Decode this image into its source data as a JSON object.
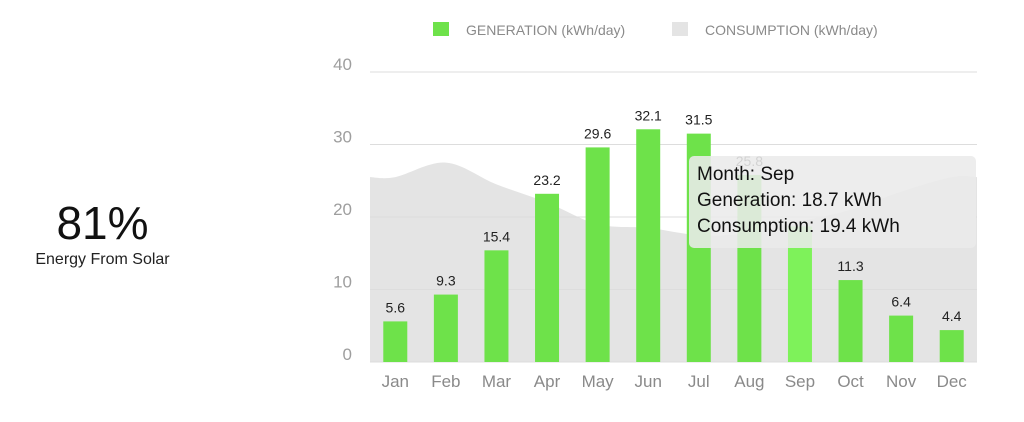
{
  "kpi": {
    "value": "81%",
    "label": "Energy From Solar"
  },
  "colors": {
    "generation": "#6ee24a",
    "generation_highlight": "#7ef25a",
    "consumption": "#e4e4e4",
    "grid": "#dddddd"
  },
  "chart_data": {
    "type": "bar",
    "categories": [
      "Jan",
      "Feb",
      "Mar",
      "Apr",
      "May",
      "Jun",
      "Jul",
      "Aug",
      "Sep",
      "Oct",
      "Nov",
      "Dec"
    ],
    "series": [
      {
        "name": "GENERATION (kWh/day)",
        "type": "bar",
        "values": [
          5.6,
          9.3,
          15.4,
          23.2,
          29.6,
          32.1,
          31.5,
          25.8,
          18.7,
          11.3,
          6.4,
          4.4
        ]
      },
      {
        "name": "CONSUMPTION (kWh/day)",
        "type": "area",
        "values": [
          25.5,
          27.5,
          24.5,
          22.0,
          19.0,
          18.5,
          17.5,
          17.8,
          19.4,
          21.0,
          23.5,
          25.5
        ]
      }
    ],
    "data_labels": [
      "5.6",
      "9.3",
      "15.4",
      "23.2",
      "29.6",
      "32.1",
      "31.5",
      "25.8",
      "",
      "11.3",
      "6.4",
      "4.4"
    ],
    "yticks": [
      "0",
      "10",
      "20",
      "30",
      "40"
    ],
    "ylim": [
      0,
      40
    ],
    "grid": true,
    "legend_position": "top-center",
    "highlighted_category": "Sep",
    "tooltip": {
      "month": "Month: Sep",
      "generation": "Generation: 18.7 kWh",
      "consumption": "Consumption: 19.4 kWh"
    }
  }
}
